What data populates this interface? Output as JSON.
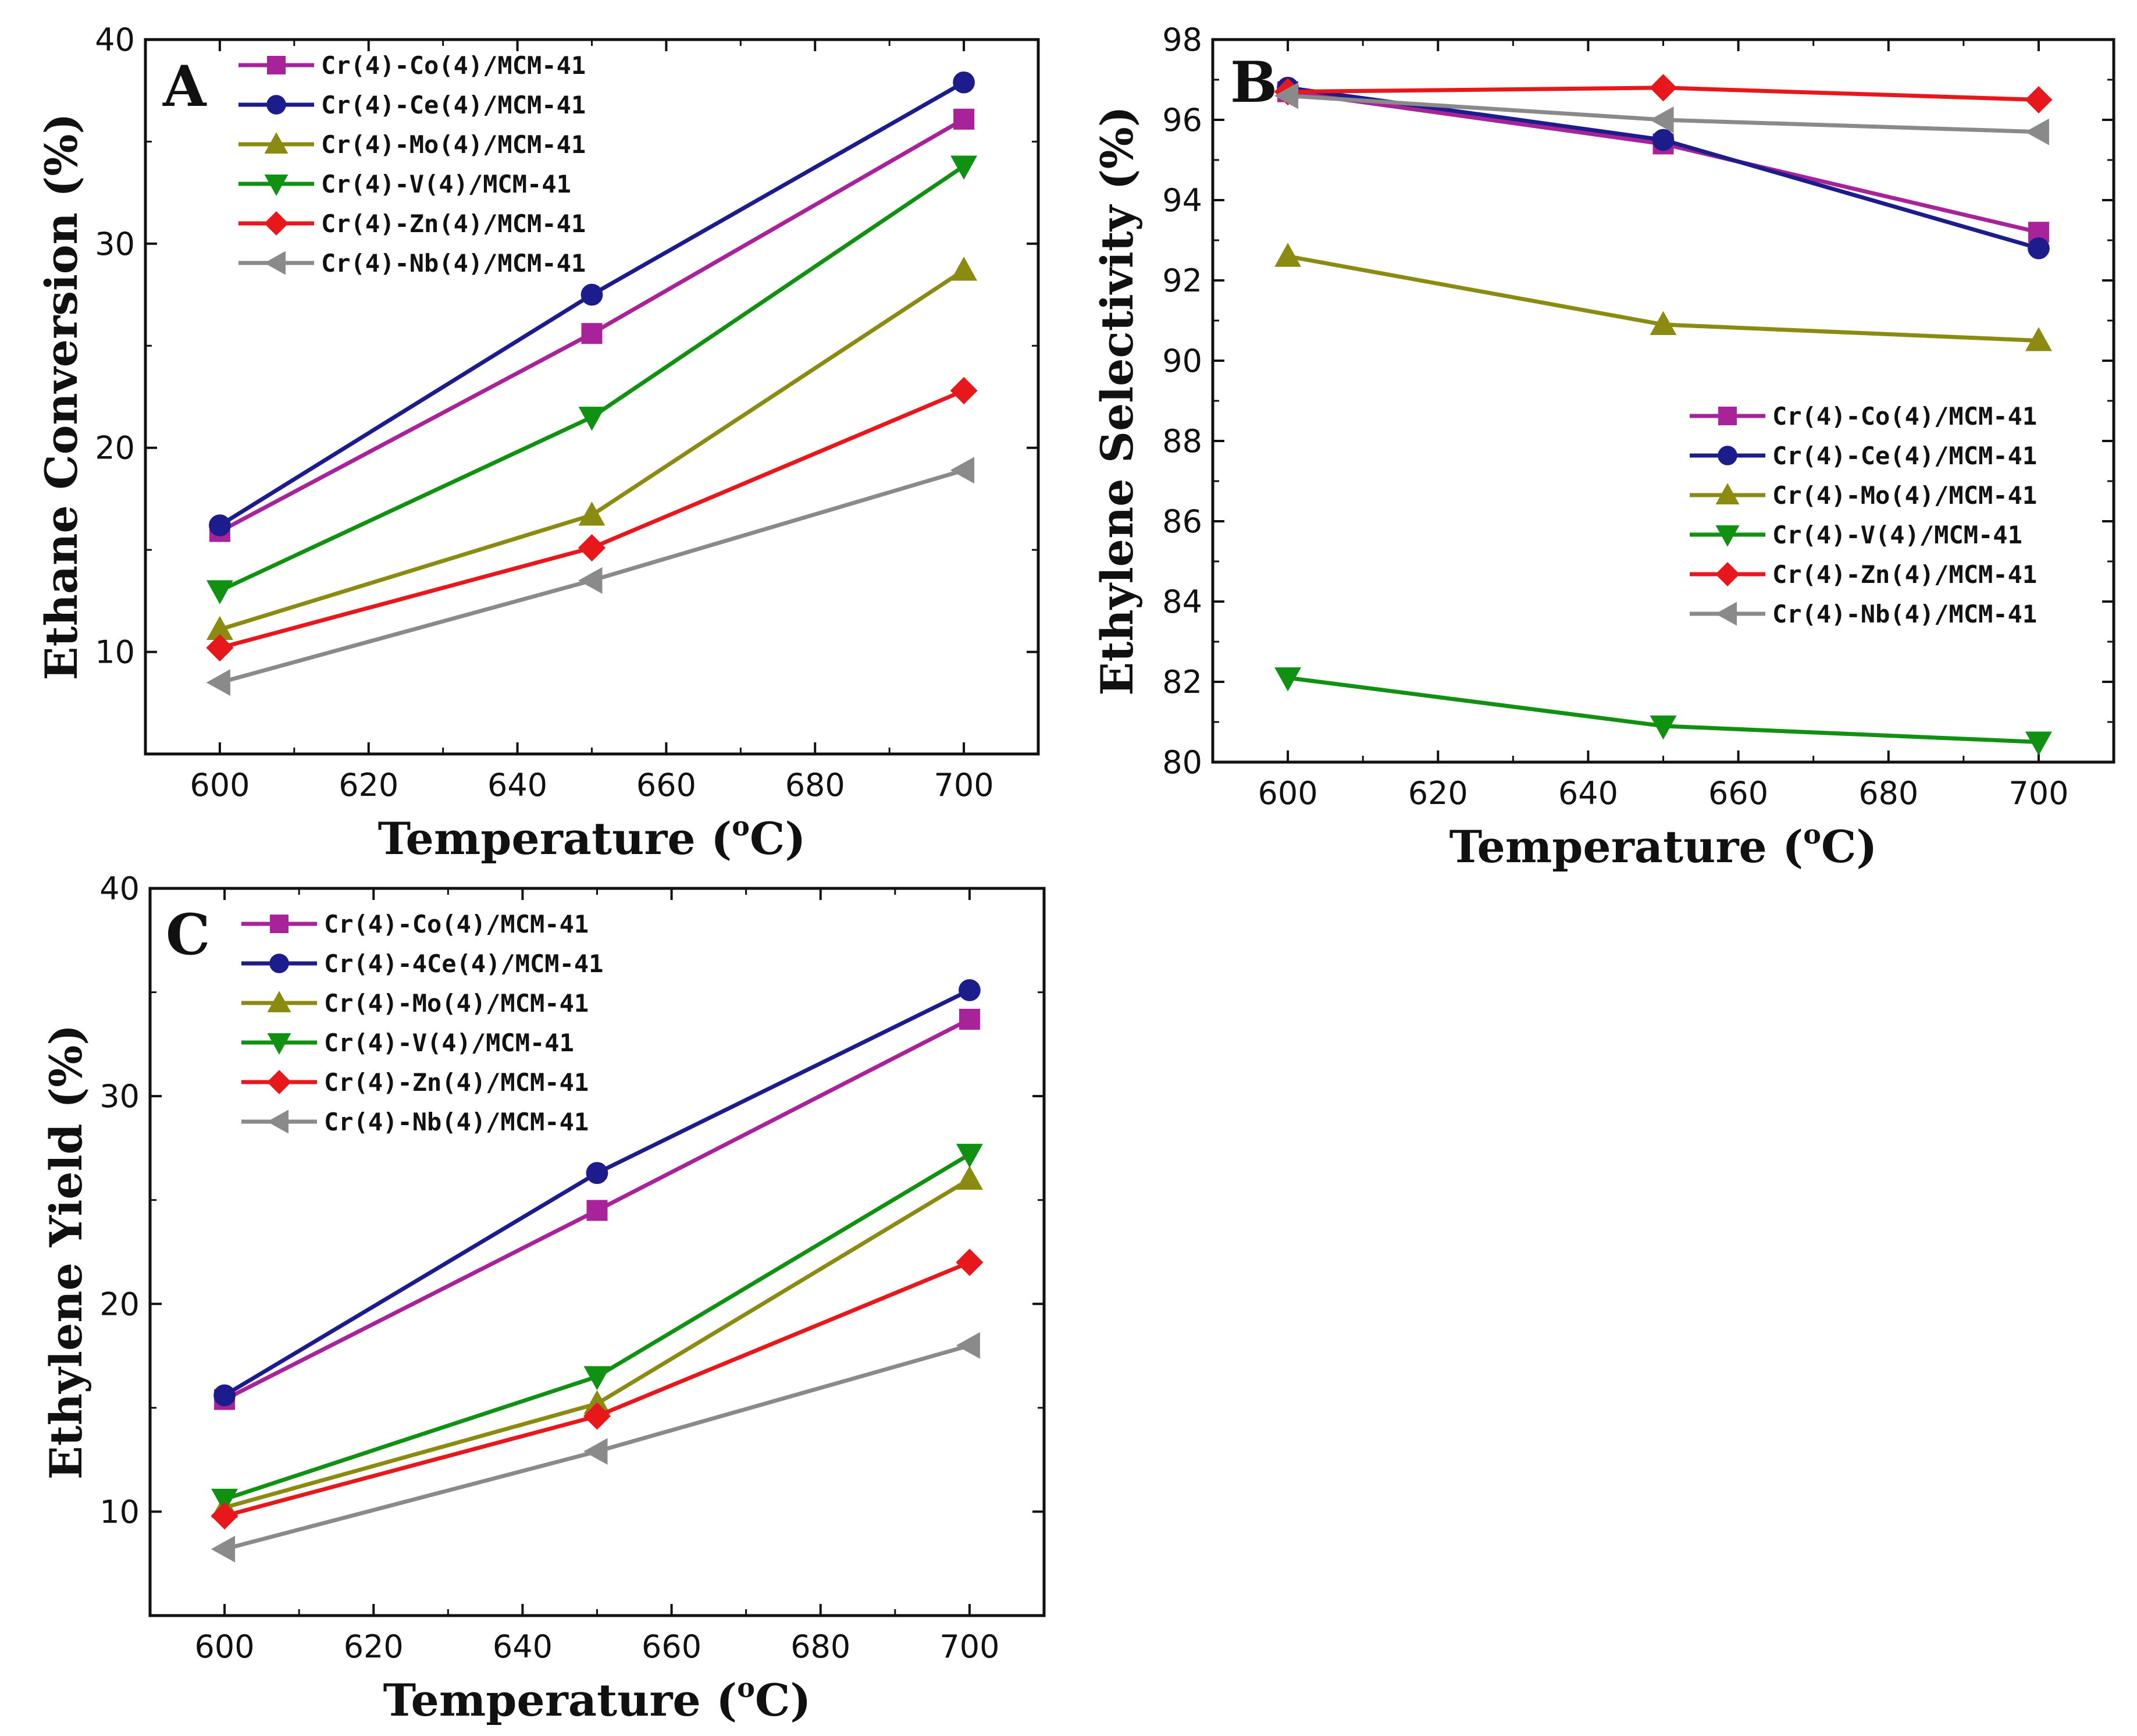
{
  "figure": {
    "colors": {
      "co": "#a8239a",
      "ce": "#1c1c8c",
      "mo": "#8b8b12",
      "v": "#119111",
      "zn": "#e8171c",
      "nb": "#8a8a8a"
    }
  },
  "chart_data": [
    {
      "panel": "A",
      "type": "line",
      "xlabel": "Temperature (",
      "xlabel_sup": "o",
      "xlabel_end": "C)",
      "ylabel": "Ethane Conversion (%)",
      "xlim": [
        590,
        710
      ],
      "ylim": [
        5,
        40
      ],
      "xticks": [
        600,
        620,
        640,
        660,
        680,
        700
      ],
      "yticks": [
        10,
        20,
        30,
        40
      ],
      "x": [
        600,
        650,
        700
      ],
      "legend_position": "top-left",
      "series": [
        {
          "name": "Cr(4)-Co(4)/MCM-41",
          "color_key": "co",
          "marker": "square",
          "values": [
            15.9,
            25.6,
            36.1
          ]
        },
        {
          "name": "Cr(4)-Ce(4)/MCM-41",
          "color_key": "ce",
          "marker": "circle",
          "values": [
            16.2,
            27.5,
            37.9
          ]
        },
        {
          "name": "Cr(4)-Mo(4)/MCM-41",
          "color_key": "mo",
          "marker": "triangle-up",
          "values": [
            11.1,
            16.7,
            28.7
          ]
        },
        {
          "name": "Cr(4)-V(4)/MCM-41",
          "color_key": "v",
          "marker": "triangle-down",
          "values": [
            13.0,
            21.5,
            33.8
          ]
        },
        {
          "name": "Cr(4)-Zn(4)/MCM-41",
          "color_key": "zn",
          "marker": "diamond",
          "values": [
            10.2,
            15.1,
            22.8
          ]
        },
        {
          "name": "Cr(4)-Nb(4)/MCM-41",
          "color_key": "nb",
          "marker": "triangle-left",
          "values": [
            8.5,
            13.5,
            18.9
          ]
        }
      ]
    },
    {
      "panel": "B",
      "type": "line",
      "xlabel": "Temperature (",
      "xlabel_sup": "o",
      "xlabel_end": "C)",
      "ylabel": "Ethylene Selectivity (%)",
      "xlim": [
        590,
        710
      ],
      "ylim": [
        80,
        98
      ],
      "xticks": [
        600,
        620,
        640,
        660,
        680,
        700
      ],
      "yticks": [
        80,
        82,
        84,
        86,
        88,
        90,
        92,
        94,
        96,
        98
      ],
      "x": [
        600,
        650,
        700
      ],
      "legend_position": "center-right",
      "series": [
        {
          "name": "Cr(4)-Co(4)/MCM-41",
          "color_key": "co",
          "marker": "square",
          "values": [
            96.7,
            95.4,
            93.2
          ]
        },
        {
          "name": "Cr(4)-Ce(4)/MCM-41",
          "color_key": "ce",
          "marker": "circle",
          "values": [
            96.8,
            95.5,
            92.8
          ]
        },
        {
          "name": "Cr(4)-Mo(4)/MCM-41",
          "color_key": "mo",
          "marker": "triangle-up",
          "values": [
            92.6,
            90.9,
            90.5
          ]
        },
        {
          "name": "Cr(4)-V(4)/MCM-41",
          "color_key": "v",
          "marker": "triangle-down",
          "values": [
            82.1,
            80.9,
            80.5
          ]
        },
        {
          "name": "Cr(4)-Zn(4)/MCM-41",
          "color_key": "zn",
          "marker": "diamond",
          "values": [
            96.7,
            96.8,
            96.5
          ]
        },
        {
          "name": "Cr(4)-Nb(4)/MCM-41",
          "color_key": "nb",
          "marker": "triangle-left",
          "values": [
            96.6,
            96.0,
            95.7
          ]
        }
      ]
    },
    {
      "panel": "C",
      "type": "line",
      "xlabel": "Temperature (",
      "xlabel_sup": "o",
      "xlabel_end": "C)",
      "ylabel": "Ethylene Yield (%)",
      "xlim": [
        590,
        710
      ],
      "ylim": [
        5,
        40
      ],
      "xticks": [
        600,
        620,
        640,
        660,
        680,
        700
      ],
      "yticks": [
        10,
        20,
        30,
        40
      ],
      "x": [
        600,
        650,
        700
      ],
      "legend_position": "top-left",
      "series": [
        {
          "name": "Cr(4)-Co(4)/MCM-41",
          "color_key": "co",
          "marker": "square",
          "values": [
            15.4,
            24.5,
            33.7
          ]
        },
        {
          "name": "Cr(4)-4Ce(4)/MCM-41",
          "color_key": "ce",
          "marker": "circle",
          "values": [
            15.6,
            26.3,
            35.1
          ]
        },
        {
          "name": "Cr(4)-Mo(4)/MCM-41",
          "color_key": "mo",
          "marker": "triangle-up",
          "values": [
            10.2,
            15.2,
            26.0
          ]
        },
        {
          "name": "Cr(4)-V(4)/MCM-41",
          "color_key": "v",
          "marker": "triangle-down",
          "values": [
            10.6,
            16.5,
            27.2
          ]
        },
        {
          "name": "Cr(4)-Zn(4)/MCM-41",
          "color_key": "zn",
          "marker": "diamond",
          "values": [
            9.8,
            14.6,
            22.0
          ]
        },
        {
          "name": "Cr(4)-Nb(4)/MCM-41",
          "color_key": "nb",
          "marker": "triangle-left",
          "values": [
            8.2,
            12.9,
            18.0
          ]
        }
      ]
    }
  ]
}
